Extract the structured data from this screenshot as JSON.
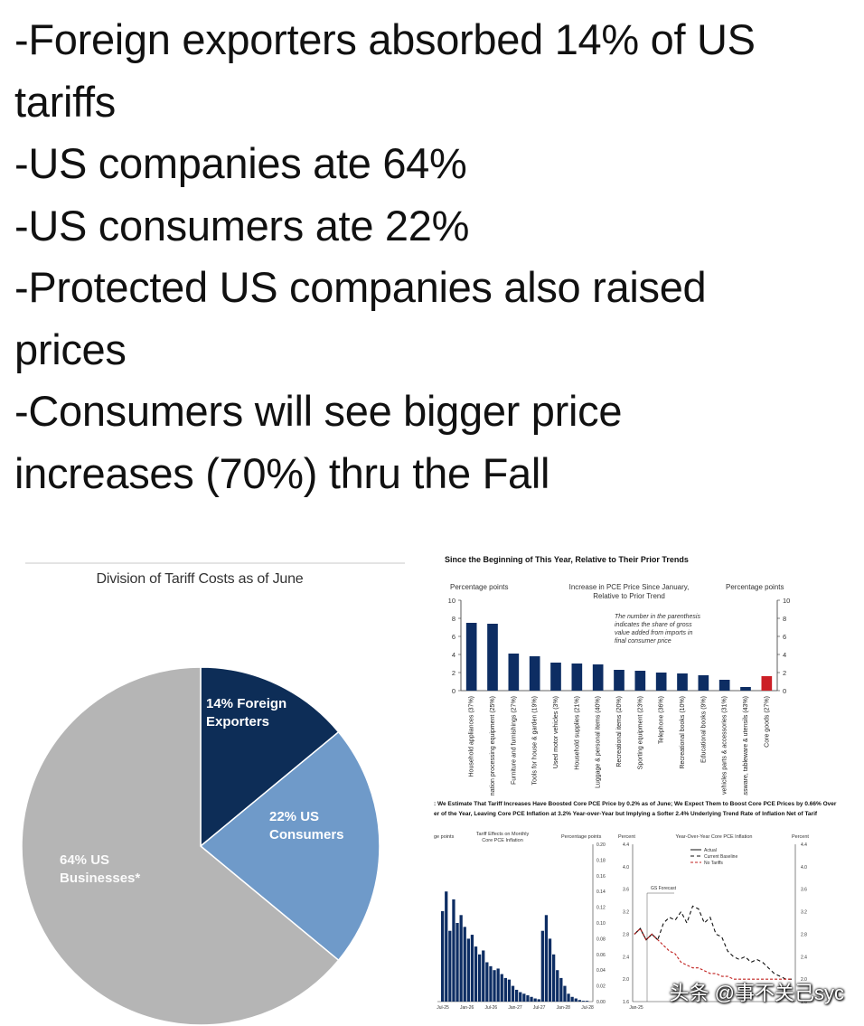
{
  "headline": {
    "lines": [
      "-Foreign exporters absorbed 14% of US",
      "tariffs",
      "-US companies ate 64%",
      "-US consumers ate 22%",
      "-Protected US companies also raised",
      "prices",
      "-Consumers will see bigger price",
      "increases (70%) thru the Fall"
    ]
  },
  "watermark": "头条 @事不关己syc",
  "colors": {
    "navy": "#0d2d57",
    "lightblue": "#6f9ac9",
    "gray": "#b5b5b5",
    "bar": "#0d2d63",
    "red": "#cc1f26"
  },
  "chart_data": [
    {
      "type": "pie",
      "title": "Division of Tariff Costs as of June",
      "slices": [
        {
          "label_line1": "14% Foreign",
          "label_line2": "Exporters",
          "value": 14,
          "color": "#0d2d57"
        },
        {
          "label_line1": "22% US",
          "label_line2": "Consumers",
          "value": 22,
          "color": "#6f9ac9"
        },
        {
          "label_line1": "64% US",
          "label_line2": "Businesses*",
          "value": 64,
          "color": "#b5b5b5"
        }
      ]
    },
    {
      "type": "bar",
      "title": "Since the Beginning of This Year, Relative to Their Prior Trends",
      "ylabel_left": "Percentage points",
      "ylabel_right": "Percentage points",
      "subtitle_line1": "Increase in PCE Price Since January,",
      "subtitle_line2": "Relative to Prior Trend",
      "note": [
        "The number in the parenthesis",
        "indicates the share of gross",
        "value added from imports in",
        "final consumer price"
      ],
      "ylim": [
        0,
        10
      ],
      "yticks": [
        0,
        2,
        4,
        6,
        8,
        10
      ],
      "categories": [
        "Household appliances (37%)",
        "Information processing equipment (25%)",
        "Furniture and furnishings (27%)",
        "Tools for house & garden (19%)",
        "Used motor vehicles (3%)",
        "Household supplies (21%)",
        "Luggage & personal items (40%)",
        "Recreational items (20%)",
        "Sporting equipment (23%)",
        "Telephone (36%)",
        "Recreational books (10%)",
        "Educational books (9%)",
        "Motor vehicles parts & accessories (31%)",
        "Glassware, tableware & utensils (43%)",
        "Core goods (27%)"
      ],
      "values": [
        7.5,
        7.4,
        4.1,
        3.8,
        3.1,
        3.0,
        2.9,
        2.3,
        2.2,
        2.0,
        1.9,
        1.7,
        1.2,
        0.4,
        1.6
      ],
      "highlight_last": true
    },
    {
      "type": "bar",
      "title_line1": ": We Estimate That Tariff Increases Have Boosted Core PCE Price by 0.2% as of June; We Expect Them to Boost Core PCE Prices by 0.66% Over",
      "title_line2": "er of the Year, Leaving Core PCE Inflation at 3.2% Year-over-Year but Implying a Softer 2.4% Underlying Trend Rate of Inflation Net of Tarif",
      "ylabel_left": "ge points",
      "subtitle_line1": "Tariff Effects on Monthly",
      "subtitle_line2": "Core PCE Inflation",
      "ylabel_right": "Percentage points",
      "ylim": [
        0,
        0.2
      ],
      "yticks": [
        0,
        0.02,
        0.04,
        0.06,
        0.08,
        0.1,
        0.12,
        0.14,
        0.16,
        0.18,
        0.2
      ],
      "ytick_labels": [
        "0.00",
        "0.02",
        "0.04",
        "0.06",
        "0.08",
        "0.10",
        "0.12",
        "0.14",
        "0.16",
        "0.18",
        "0.20"
      ],
      "x_ticks": [
        "Jul-25",
        "Jan-26",
        "Jul-26",
        "Jan-27",
        "Jul-27",
        "Jan-28",
        "Jul-28"
      ],
      "values": [
        0.115,
        0.14,
        0.09,
        0.13,
        0.1,
        0.11,
        0.095,
        0.08,
        0.085,
        0.07,
        0.06,
        0.065,
        0.05,
        0.045,
        0.04,
        0.042,
        0.035,
        0.03,
        0.028,
        0.02,
        0.015,
        0.012,
        0.01,
        0.008,
        0.006,
        0.004,
        0.003,
        0.09,
        0.11,
        0.08,
        0.06,
        0.04,
        0.03,
        0.02,
        0.01,
        0.006,
        0.004,
        0.002,
        0.001,
        0.001
      ]
    },
    {
      "type": "line",
      "title": "Year-Over-Year Core PCE Inflation",
      "ylabel_left": "Percent",
      "ylabel_right": "Percent",
      "ylim": [
        1.6,
        4.4
      ],
      "yticks": [
        1.6,
        2.0,
        2.4,
        2.8,
        3.2,
        3.6,
        4.0,
        4.4
      ],
      "ytick_labels": [
        "1.6",
        "2.0",
        "2.4",
        "2.8",
        "3.2",
        "3.6",
        "4.0",
        "4.4"
      ],
      "x_tick_first": "Jan-25",
      "annotation": "GS Forecast",
      "series": [
        {
          "name": "Actual",
          "dash": "",
          "values": [
            2.8,
            2.9,
            2.7,
            2.8,
            2.7
          ]
        },
        {
          "name": "Current Baseline",
          "dash": "4,3",
          "values": [
            2.8,
            2.9,
            2.7,
            2.8,
            2.7,
            3.0,
            3.1,
            3.05,
            3.2,
            3.0,
            3.3,
            3.25,
            3.0,
            3.1,
            2.8,
            2.75,
            2.5,
            2.4,
            2.35,
            2.4,
            2.3,
            2.35,
            2.3,
            2.2,
            2.1,
            2.05,
            2.0,
            2.0
          ]
        },
        {
          "name": "No Tariffs",
          "dash": "3,2",
          "values": [
            2.8,
            2.9,
            2.7,
            2.8,
            2.7,
            2.6,
            2.5,
            2.45,
            2.3,
            2.25,
            2.2,
            2.2,
            2.15,
            2.1,
            2.1,
            2.05,
            2.05,
            2.0,
            2.0,
            2.0,
            2.0,
            2.0,
            2.0,
            2.0,
            2.0,
            2.0,
            2.0,
            2.0
          ]
        }
      ]
    }
  ]
}
